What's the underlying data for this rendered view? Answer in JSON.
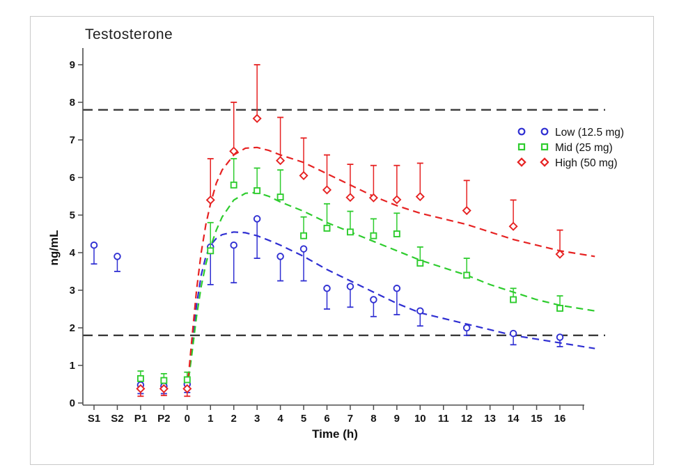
{
  "figure": {
    "title": "Testosterone",
    "y_axis_label": "ng/mL",
    "x_axis_label": "Time (h)",
    "border_color": "#c9c9c9",
    "background": "#ffffff"
  },
  "legend": {
    "items": [
      {
        "label": "Low (12.5 mg)",
        "color": "#2f2fd2",
        "marker": "circle"
      },
      {
        "label": "Mid (25 mg)",
        "color": "#2ecc2e",
        "marker": "square"
      },
      {
        "label": "High (50 mg)",
        "color": "#e62222",
        "marker": "diamond"
      }
    ]
  },
  "chart_data": {
    "type": "scatter",
    "title": "Testosterone",
    "xlabel": "Time (h)",
    "ylabel": "ng/mL",
    "ylim": [
      0,
      9
    ],
    "yticks": [
      0,
      1,
      2,
      3,
      4,
      5,
      6,
      7,
      8,
      9
    ],
    "categories": [
      "S1",
      "S2",
      "P1",
      "P2",
      "0",
      "1",
      "2",
      "3",
      "4",
      "5",
      "6",
      "7",
      "8",
      "9",
      "10",
      "11",
      "12",
      "13",
      "14",
      "15",
      "16"
    ],
    "grid": false,
    "legend_position": "right-upper",
    "axis_color": "#4d4d4d",
    "tick_label_color": "#141414",
    "reference_lines": [
      {
        "name": "upper-limit",
        "y": 7.8,
        "color": "#3a3a3a",
        "style": "dashed"
      },
      {
        "name": "lower-limit",
        "y": 1.8,
        "color": "#3a3a3a",
        "style": "dashed"
      }
    ],
    "series": [
      {
        "name": "Low (12.5 mg)",
        "marker": "circle",
        "color": "#2f2fd2",
        "error_bar_direction": "down",
        "points": [
          {
            "cat": "S1",
            "y": 4.2,
            "bar": 3.7
          },
          {
            "cat": "S2",
            "y": 3.9,
            "bar": 3.5
          },
          {
            "cat": "P1",
            "y": 0.48,
            "bar": 0.25
          },
          {
            "cat": "P2",
            "y": 0.45,
            "bar": 0.25
          },
          {
            "cat": "0",
            "y": 0.5,
            "bar": 0.28
          },
          {
            "cat": "1",
            "y": 4.15,
            "bar": 3.15
          },
          {
            "cat": "2",
            "y": 4.2,
            "bar": 3.2
          },
          {
            "cat": "3",
            "y": 4.9,
            "bar": 3.85
          },
          {
            "cat": "4",
            "y": 3.9,
            "bar": 3.25
          },
          {
            "cat": "5",
            "y": 4.1,
            "bar": 3.25
          },
          {
            "cat": "6",
            "y": 3.05,
            "bar": 2.5
          },
          {
            "cat": "7",
            "y": 3.1,
            "bar": 2.55
          },
          {
            "cat": "8",
            "y": 2.75,
            "bar": 2.3
          },
          {
            "cat": "9",
            "y": 3.05,
            "bar": 2.35
          },
          {
            "cat": "10",
            "y": 2.45,
            "bar": 2.05
          },
          {
            "cat": "12",
            "y": 2.0,
            "bar": 1.8
          },
          {
            "cat": "14",
            "y": 1.85,
            "bar": 1.55
          },
          {
            "cat": "16",
            "y": 1.75,
            "bar": 1.5
          }
        ]
      },
      {
        "name": "Mid (25 mg)",
        "marker": "square",
        "color": "#2ecc2e",
        "error_bar_direction": "up",
        "points": [
          {
            "cat": "P1",
            "y": 0.65,
            "bar": 0.85
          },
          {
            "cat": "P2",
            "y": 0.6,
            "bar": 0.78
          },
          {
            "cat": "0",
            "y": 0.62,
            "bar": 0.82
          },
          {
            "cat": "1",
            "y": 4.05,
            "bar": 4.8
          },
          {
            "cat": "2",
            "y": 5.8,
            "bar": 6.5
          },
          {
            "cat": "3",
            "y": 5.65,
            "bar": 6.25
          },
          {
            "cat": "4",
            "y": 5.48,
            "bar": 6.2
          },
          {
            "cat": "5",
            "y": 4.45,
            "bar": 4.95
          },
          {
            "cat": "6",
            "y": 4.65,
            "bar": 5.3
          },
          {
            "cat": "7",
            "y": 4.55,
            "bar": 5.1
          },
          {
            "cat": "8",
            "y": 4.45,
            "bar": 4.9
          },
          {
            "cat": "9",
            "y": 4.5,
            "bar": 5.05
          },
          {
            "cat": "10",
            "y": 3.72,
            "bar": 4.15
          },
          {
            "cat": "12",
            "y": 3.4,
            "bar": 3.85
          },
          {
            "cat": "14",
            "y": 2.75,
            "bar": 3.05
          },
          {
            "cat": "16",
            "y": 2.52,
            "bar": 2.85
          }
        ]
      },
      {
        "name": "High (50 mg)",
        "marker": "diamond",
        "color": "#e62222",
        "error_bar_direction": "up",
        "points": [
          {
            "cat": "P1",
            "y": 0.38,
            "bar": 0.18
          },
          {
            "cat": "P2",
            "y": 0.38,
            "bar": 0.2
          },
          {
            "cat": "0",
            "y": 0.38,
            "bar": 0.18
          },
          {
            "cat": "1",
            "y": 5.4,
            "bar": 6.5
          },
          {
            "cat": "2",
            "y": 6.7,
            "bar": 8.0
          },
          {
            "cat": "3",
            "y": 7.57,
            "bar": 9.0
          },
          {
            "cat": "4",
            "y": 6.45,
            "bar": 7.6
          },
          {
            "cat": "5",
            "y": 6.05,
            "bar": 7.05
          },
          {
            "cat": "6",
            "y": 5.67,
            "bar": 6.6
          },
          {
            "cat": "7",
            "y": 5.47,
            "bar": 6.35
          },
          {
            "cat": "8",
            "y": 5.46,
            "bar": 6.32
          },
          {
            "cat": "9",
            "y": 5.41,
            "bar": 6.32
          },
          {
            "cat": "10",
            "y": 5.49,
            "bar": 6.38
          },
          {
            "cat": "12",
            "y": 5.12,
            "bar": 5.92
          },
          {
            "cat": "14",
            "y": 4.7,
            "bar": 5.4
          },
          {
            "cat": "16",
            "y": 3.96,
            "bar": 4.6
          }
        ]
      }
    ],
    "fit_curves": [
      {
        "name": "low-fit",
        "color": "#2f2fd2",
        "t": [
          0,
          0.2,
          0.4,
          0.6,
          0.8,
          1,
          1.25,
          1.5,
          2,
          2.5,
          3,
          3.5,
          4,
          5,
          6,
          7,
          8,
          9,
          10,
          11,
          12,
          13,
          14,
          15,
          16,
          17.5
        ],
        "y": [
          0.35,
          1.5,
          2.6,
          3.4,
          3.9,
          4.2,
          4.38,
          4.48,
          4.55,
          4.53,
          4.45,
          4.33,
          4.2,
          3.9,
          3.55,
          3.25,
          2.95,
          2.65,
          2.4,
          2.25,
          2.1,
          1.95,
          1.8,
          1.7,
          1.6,
          1.45
        ]
      },
      {
        "name": "mid-fit",
        "color": "#2ecc2e",
        "t": [
          0,
          0.2,
          0.4,
          0.6,
          0.8,
          1,
          1.25,
          1.5,
          2,
          2.5,
          3,
          3.5,
          4,
          5,
          6,
          7,
          8,
          9,
          10,
          11,
          12,
          13,
          14,
          15,
          16,
          17.5
        ],
        "y": [
          0.35,
          1.3,
          2.3,
          3.1,
          3.7,
          4.15,
          4.6,
          4.95,
          5.4,
          5.58,
          5.6,
          5.5,
          5.35,
          5.1,
          4.8,
          4.55,
          4.3,
          4.05,
          3.8,
          3.6,
          3.4,
          3.15,
          2.95,
          2.75,
          2.6,
          2.45
        ]
      },
      {
        "name": "high-fit",
        "color": "#e62222",
        "t": [
          0,
          0.2,
          0.4,
          0.6,
          0.8,
          1,
          1.25,
          1.5,
          2,
          2.5,
          3,
          3.5,
          4,
          5,
          6,
          7,
          8,
          9,
          10,
          11,
          12,
          13,
          14,
          15,
          16,
          17.5
        ],
        "y": [
          0.35,
          1.7,
          3.0,
          4.0,
          4.75,
          5.3,
          5.85,
          6.2,
          6.6,
          6.78,
          6.8,
          6.72,
          6.6,
          6.4,
          6.1,
          5.8,
          5.5,
          5.25,
          5.05,
          4.9,
          4.75,
          4.55,
          4.35,
          4.2,
          4.05,
          3.9
        ]
      }
    ]
  }
}
